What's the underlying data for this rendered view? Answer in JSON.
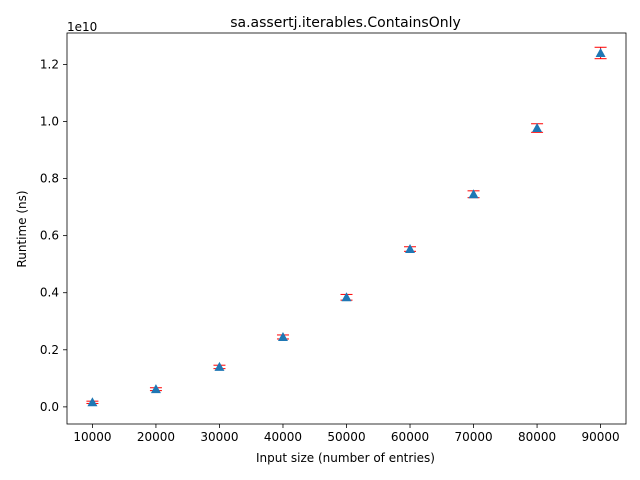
{
  "chart_data": {
    "type": "scatter",
    "title": "sa.assertj.iterables.ContainsOnly",
    "xlabel": "Input size (number of entries)",
    "ylabel": "Runtime (ns)",
    "y_offset_label": "1e10",
    "xlim": [
      6000,
      94000
    ],
    "ylim": [
      -0.06,
      1.31
    ],
    "x_ticks": [
      10000,
      20000,
      30000,
      40000,
      50000,
      60000,
      70000,
      80000,
      90000
    ],
    "x_tick_labels": [
      "10000",
      "20000",
      "30000",
      "40000",
      "50000",
      "60000",
      "70000",
      "80000",
      "90000"
    ],
    "y_ticks": [
      0.0,
      0.2,
      0.4,
      0.6,
      0.8,
      1.0,
      1.2
    ],
    "y_tick_labels": [
      "0.0",
      "0.2",
      "0.4",
      "0.6",
      "0.8",
      "1.0",
      "1.2"
    ],
    "grid": false,
    "marker": "triangle",
    "marker_color": "#1f77b4",
    "errorbar_color": "#ff0000",
    "series": [
      {
        "x": [
          10000,
          20000,
          30000,
          40000,
          50000,
          60000,
          70000,
          80000,
          90000
        ],
        "y": [
          0.016,
          0.062,
          0.14,
          0.245,
          0.384,
          0.553,
          0.745,
          0.977,
          1.24
        ],
        "err": [
          0.004,
          0.005,
          0.006,
          0.007,
          0.01,
          0.008,
          0.012,
          0.015,
          0.02
        ]
      }
    ]
  }
}
